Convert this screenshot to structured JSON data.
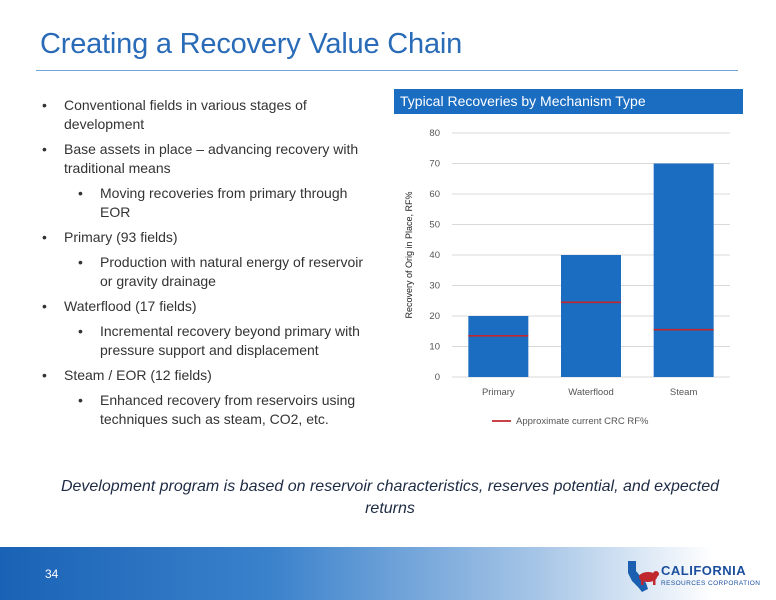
{
  "slide": {
    "title": "Creating a Recovery Value Chain",
    "page_number": "34"
  },
  "bullets": [
    {
      "level": 1,
      "text": "Conventional fields in various stages of development"
    },
    {
      "level": 1,
      "text": "Base assets in place – advancing recovery with traditional means"
    },
    {
      "level": 2,
      "text": "Moving recoveries from primary through EOR"
    },
    {
      "level": 1,
      "text": "Primary (93 fields)"
    },
    {
      "level": 2,
      "text": "Production with natural energy of reservoir or gravity drainage"
    },
    {
      "level": 1,
      "text": "Waterflood (17 fields)"
    },
    {
      "level": 2,
      "text": "Incremental recovery beyond primary with pressure support and displacement"
    },
    {
      "level": 1,
      "text": "Steam / EOR (12 fields)"
    },
    {
      "level": 2,
      "text": "Enhanced recovery from reservoirs using techniques such as steam, CO2, etc."
    }
  ],
  "tagline": "Development program is based on reservoir characteristics, reserves potential, and expected returns",
  "logo": {
    "line1": "CALIFORNIA",
    "line2": "RESOURCES CORPORATION"
  },
  "chart_data": {
    "type": "bar",
    "title": "Typical Recoveries by Mechanism Type",
    "categories": [
      "Primary",
      "Waterflood",
      "Steam"
    ],
    "series": [
      {
        "values": [
          20,
          40,
          70
        ],
        "color": "#1a6dc0"
      },
      {
        "name": "Approximate current CRC RF%",
        "values": [
          13.5,
          24.5,
          15.5
        ],
        "color": "#c0282d",
        "style": "marker-line"
      }
    ],
    "ylabel": "Recovery of Orig in Place, RF%",
    "ylim": [
      0,
      80
    ],
    "yticks": [
      0,
      10,
      20,
      30,
      40,
      50,
      60,
      70,
      80
    ],
    "grid": true,
    "legend": "bottom"
  },
  "colors": {
    "title": "#2a6bb8",
    "accent": "#1a6dc0",
    "marker": "#c0282d"
  }
}
